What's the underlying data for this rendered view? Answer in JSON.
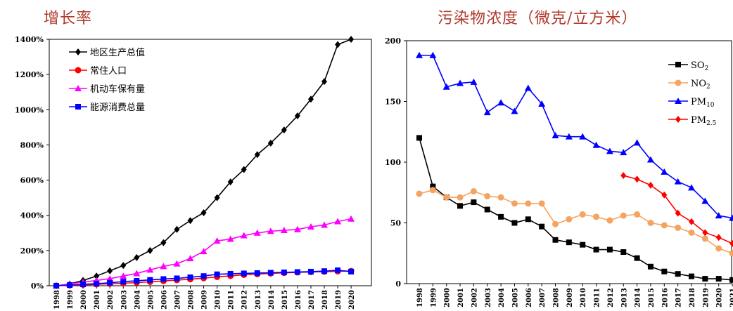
{
  "chart_data": [
    {
      "type": "line",
      "title": "增长率",
      "x": [
        "1998",
        "1999",
        "2000",
        "2001",
        "2002",
        "2003",
        "2004",
        "2005",
        "2006",
        "2007",
        "2008",
        "2009",
        "2010",
        "2011",
        "2012",
        "2013",
        "2014",
        "2015",
        "2016",
        "2017",
        "2018",
        "2019",
        "2020"
      ],
      "yticks": [
        "0%",
        "200%",
        "400%",
        "600%",
        "800%",
        "1000%",
        "1200%",
        "1400%"
      ],
      "ylim": [
        0,
        1400
      ],
      "legend": "top-left",
      "series": [
        {
          "name": "地区生产总值",
          "color": "#000000",
          "marker": "diamond",
          "values": [
            0,
            10,
            30,
            55,
            85,
            115,
            160,
            200,
            245,
            320,
            370,
            415,
            500,
            590,
            660,
            745,
            810,
            885,
            965,
            1060,
            1160,
            1370,
            1400
          ]
        },
        {
          "name": "常住人口",
          "color": "#ff0000",
          "marker": "circle",
          "values": [
            0,
            2,
            5,
            8,
            11,
            14,
            18,
            22,
            27,
            32,
            37,
            43,
            50,
            56,
            62,
            66,
            70,
            73,
            76,
            78,
            80,
            82,
            84
          ]
        },
        {
          "name": "机动车保有量",
          "color": "#ff00ff",
          "marker": "triangle",
          "values": [
            0,
            10,
            20,
            30,
            40,
            55,
            70,
            90,
            110,
            125,
            155,
            195,
            255,
            265,
            285,
            300,
            310,
            315,
            320,
            335,
            345,
            365,
            380
          ]
        },
        {
          "name": "能源消费总量",
          "color": "#0000ff",
          "marker": "square",
          "values": [
            0,
            4,
            8,
            12,
            17,
            23,
            28,
            33,
            38,
            42,
            48,
            55,
            65,
            68,
            70,
            72,
            74,
            76,
            78,
            80,
            83,
            88,
            80
          ]
        }
      ]
    },
    {
      "type": "line",
      "title": "污染物浓度（微克/立方米）",
      "x": [
        "1998",
        "1999",
        "2000",
        "2001",
        "2002",
        "2003",
        "2004",
        "2005",
        "2006",
        "2007",
        "2008",
        "2009",
        "2010",
        "2011",
        "2012",
        "2013",
        "2014",
        "2015",
        "2016",
        "2017",
        "2018",
        "2019",
        "2020",
        "2021"
      ],
      "yticks": [
        "0",
        "50",
        "100",
        "150",
        "200"
      ],
      "ylim": [
        0,
        200
      ],
      "legend": "top-right",
      "series": [
        {
          "name": "SO",
          "sub": "2",
          "color": "#000000",
          "marker": "square",
          "values": [
            120,
            80,
            71,
            64,
            67,
            61,
            55,
            50,
            53,
            47,
            36,
            34,
            32,
            28,
            28,
            26,
            21,
            14,
            10,
            8,
            6,
            4,
            4,
            3
          ]
        },
        {
          "name": "NO",
          "sub": "2",
          "color": "#f4a460",
          "marker": "circle",
          "values": [
            74,
            77,
            71,
            71,
            76,
            72,
            71,
            66,
            66,
            66,
            49,
            53,
            57,
            55,
            52,
            56,
            57,
            50,
            48,
            46,
            42,
            37,
            29,
            25
          ]
        },
        {
          "name": "PM",
          "sub": "10",
          "color": "#0000ff",
          "marker": "triangle",
          "values": [
            188,
            188,
            162,
            165,
            166,
            141,
            149,
            142,
            161,
            148,
            122,
            121,
            121,
            114,
            109,
            108,
            116,
            102,
            92,
            84,
            79,
            68,
            56,
            54
          ]
        },
        {
          "name": "PM",
          "sub": "2.5",
          "color": "#ff0000",
          "marker": "diamond",
          "values": [
            null,
            null,
            null,
            null,
            null,
            null,
            null,
            null,
            null,
            null,
            null,
            null,
            null,
            null,
            null,
            89,
            86,
            81,
            73,
            58,
            51,
            42,
            38,
            33
          ]
        }
      ]
    }
  ]
}
